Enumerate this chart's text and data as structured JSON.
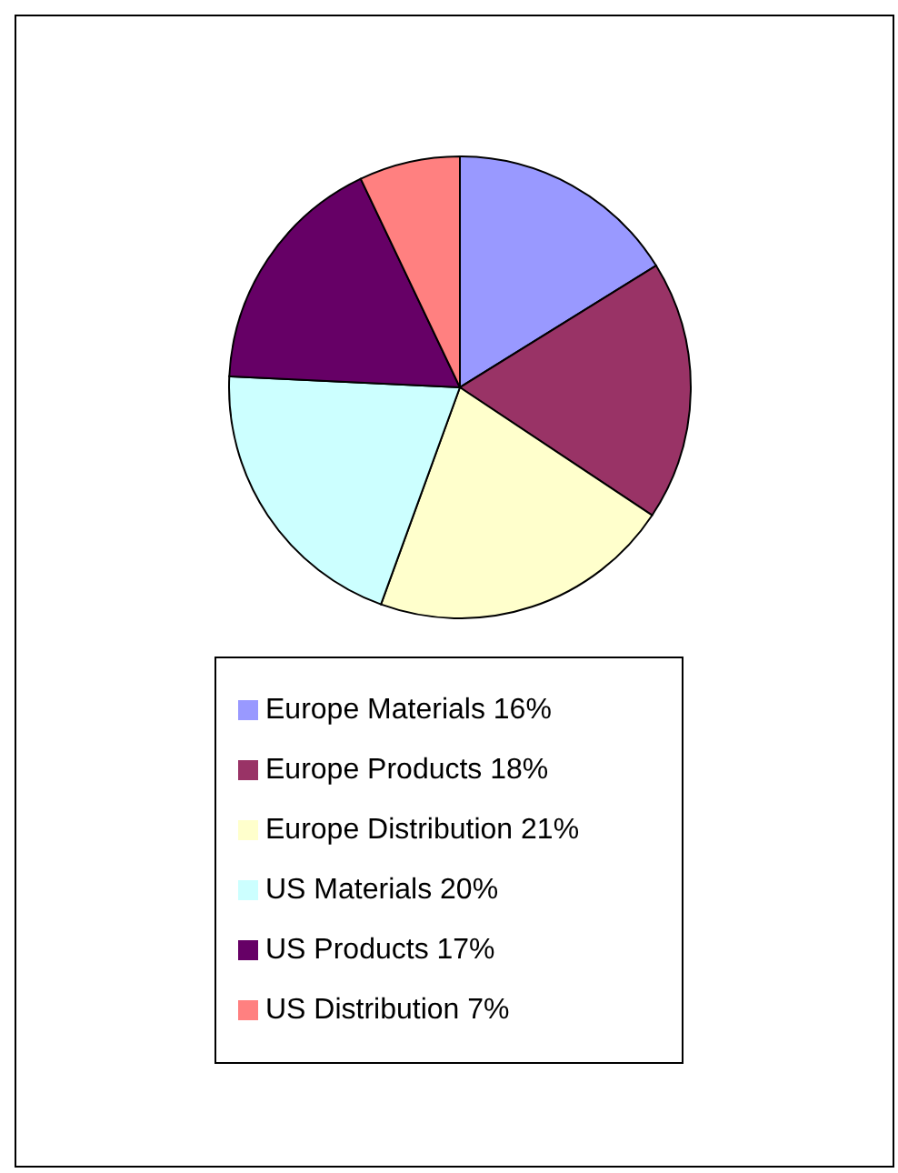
{
  "chart_data": {
    "type": "pie",
    "categories": [
      "Europe Materials 16%",
      "Europe Products 18%",
      "Europe Distribution 21%",
      "US Materials 20%",
      "US Products 17%",
      "US Distribution 7%"
    ],
    "values": [
      16,
      18,
      21,
      20,
      17,
      7
    ],
    "colors": [
      "#9999ff",
      "#993366",
      "#ffffcc",
      "#ccffff",
      "#660066",
      "#ff8080"
    ],
    "legend": "bottom"
  }
}
